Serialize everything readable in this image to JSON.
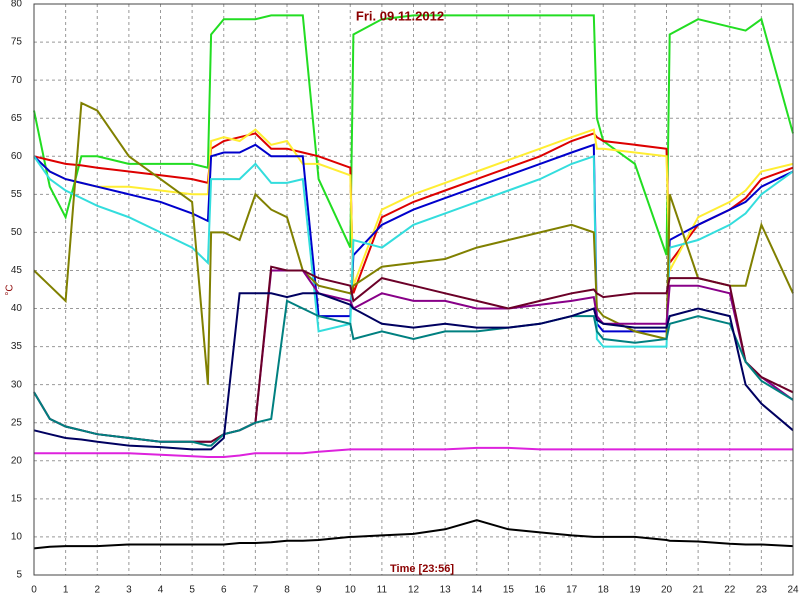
{
  "chart_data": {
    "type": "line",
    "title": "Fri. 09.11.2012",
    "x_label": "Time [23:56]",
    "y_label": "°C",
    "xlim": [
      0,
      24
    ],
    "ylim": [
      5,
      80
    ],
    "xticks": [
      0,
      1,
      2,
      3,
      4,
      5,
      6,
      7,
      8,
      9,
      10,
      11,
      12,
      13,
      14,
      15,
      16,
      17,
      18,
      19,
      20,
      21,
      22,
      23,
      24
    ],
    "yticks": [
      5,
      10,
      15,
      20,
      25,
      30,
      35,
      40,
      45,
      50,
      55,
      60,
      65,
      70,
      75,
      80
    ],
    "grid": true,
    "x": [
      0,
      0.5,
      1,
      1.5,
      2,
      3,
      4,
      5,
      5.5,
      5.6,
      6,
      6.5,
      7,
      7.5,
      8,
      8.5,
      9,
      10,
      10.1,
      11,
      12,
      13,
      14,
      15,
      16,
      17,
      17.7,
      17.8,
      18,
      19,
      20,
      20.1,
      21,
      22,
      22.5,
      23,
      24
    ],
    "series": [
      {
        "color": "#22dd22",
        "values": [
          66,
          56,
          52,
          60,
          60,
          59,
          59,
          59,
          58.5,
          76,
          78,
          78,
          78,
          78.5,
          78.5,
          78.5,
          57,
          48,
          76,
          78,
          78.5,
          78.5,
          78.5,
          78.5,
          78.5,
          78.5,
          78.5,
          65,
          62,
          59,
          47,
          76,
          78,
          77,
          76.5,
          78,
          63
        ]
      },
      {
        "color": "#dd0000",
        "values": [
          60,
          59.5,
          59,
          58.8,
          58.5,
          58,
          57.5,
          57,
          56.5,
          61,
          62,
          62.5,
          63,
          61,
          61,
          60.5,
          60,
          58.5,
          42,
          52,
          54,
          55.5,
          57,
          58.5,
          60,
          62,
          63,
          62.5,
          62,
          61.5,
          61,
          46,
          51,
          53,
          54.5,
          57,
          58.5
        ]
      },
      {
        "color": "#ffee33",
        "values": [
          60,
          58,
          57,
          56.5,
          56,
          56,
          55.5,
          55,
          55,
          62,
          62.5,
          62,
          63.5,
          61.5,
          62,
          59,
          59,
          57.5,
          43,
          53,
          55,
          56.5,
          58,
          59.5,
          61,
          62.5,
          63.5,
          61,
          61,
          60.5,
          60,
          45,
          52,
          54,
          55.5,
          58,
          59
        ]
      },
      {
        "color": "#0000cc",
        "values": [
          60,
          58,
          57,
          56.5,
          56,
          55,
          54,
          52.5,
          51.5,
          60,
          60.5,
          60.5,
          61.5,
          60,
          60,
          60,
          39,
          39,
          47,
          51,
          53,
          54.5,
          56,
          57.5,
          59,
          60.5,
          61.5,
          38,
          37,
          37,
          37,
          49,
          51,
          53,
          54,
          56,
          58
        ]
      },
      {
        "color": "#33dddd",
        "values": [
          60,
          57,
          55.5,
          54.5,
          53.5,
          52,
          50,
          48,
          46,
          57,
          57,
          57,
          59,
          56.5,
          56.5,
          57,
          37,
          38,
          49,
          48,
          51,
          52.5,
          54,
          55.5,
          57,
          59,
          60,
          36,
          35,
          35,
          35,
          48,
          49,
          51,
          52.5,
          55,
          58
        ]
      },
      {
        "color": "#808000",
        "values": [
          45,
          43,
          41,
          67,
          66,
          60,
          57,
          54,
          30,
          50,
          50,
          49,
          55,
          53,
          52,
          45,
          43,
          42,
          43,
          45.5,
          46,
          46.5,
          48,
          49,
          50,
          51,
          50,
          40,
          39,
          37,
          36,
          55,
          44,
          43,
          43,
          51,
          42
        ]
      },
      {
        "color": "#880088",
        "values": [
          29,
          25.5,
          24.5,
          24,
          23.5,
          23,
          22.5,
          22.5,
          22.5,
          22.5,
          23.5,
          24,
          25,
          45,
          45,
          45,
          42,
          41,
          40,
          42,
          41,
          41,
          40,
          40,
          40.5,
          41,
          41.5,
          39,
          38,
          38,
          38,
          43,
          43,
          42,
          33,
          31,
          28
        ]
      },
      {
        "color": "#6b0028",
        "values": [
          29,
          25.5,
          24.5,
          24,
          23.5,
          23,
          22.5,
          22.5,
          22.5,
          22.5,
          23.5,
          24,
          25,
          45.5,
          45,
          45,
          44,
          43,
          41,
          44,
          43,
          42,
          41,
          40,
          41,
          42,
          42.5,
          42,
          41.5,
          42,
          42,
          44,
          44,
          43,
          33,
          31,
          29
        ]
      },
      {
        "color": "#008080",
        "values": [
          29,
          25.5,
          24.5,
          24,
          23.5,
          23,
          22.5,
          22.5,
          22,
          22,
          23.5,
          24,
          25,
          25.5,
          41,
          40,
          39,
          38,
          36,
          37,
          36,
          37,
          37,
          37.5,
          38,
          39,
          39,
          37,
          36,
          35.5,
          36,
          38,
          39,
          38,
          33,
          30.5,
          28
        ]
      },
      {
        "color": "#000060",
        "values": [
          24,
          23.5,
          23,
          22.8,
          22.5,
          22,
          21.8,
          21.5,
          21.5,
          21.5,
          23,
          42,
          42,
          42,
          41.5,
          42,
          42,
          40.5,
          40,
          38,
          37.5,
          38,
          37.5,
          37.5,
          38,
          39,
          40,
          38.5,
          38,
          37.5,
          37.5,
          39,
          40,
          39,
          30,
          27.5,
          24
        ]
      },
      {
        "color": "#dd22dd",
        "values": [
          21,
          21,
          21,
          21,
          21,
          21,
          20.8,
          20.6,
          20.5,
          20.5,
          20.5,
          20.7,
          21,
          21,
          21,
          21,
          21.2,
          21.5,
          21.5,
          21.5,
          21.5,
          21.5,
          21.7,
          21.7,
          21.5,
          21.5,
          21.5,
          21.5,
          21.5,
          21.5,
          21.5,
          21.5,
          21.5,
          21.5,
          21.5,
          21.5,
          21.5
        ]
      },
      {
        "color": "#000000",
        "values": [
          8.5,
          8.7,
          8.8,
          8.8,
          8.8,
          9,
          9,
          9,
          9,
          9,
          9,
          9.2,
          9.2,
          9.3,
          9.5,
          9.5,
          9.6,
          10,
          10,
          10.2,
          10.4,
          11,
          12.2,
          11,
          10.6,
          10.2,
          10,
          10,
          10,
          10,
          9.6,
          9.5,
          9.4,
          9.1,
          9,
          9,
          8.8
        ]
      }
    ]
  }
}
